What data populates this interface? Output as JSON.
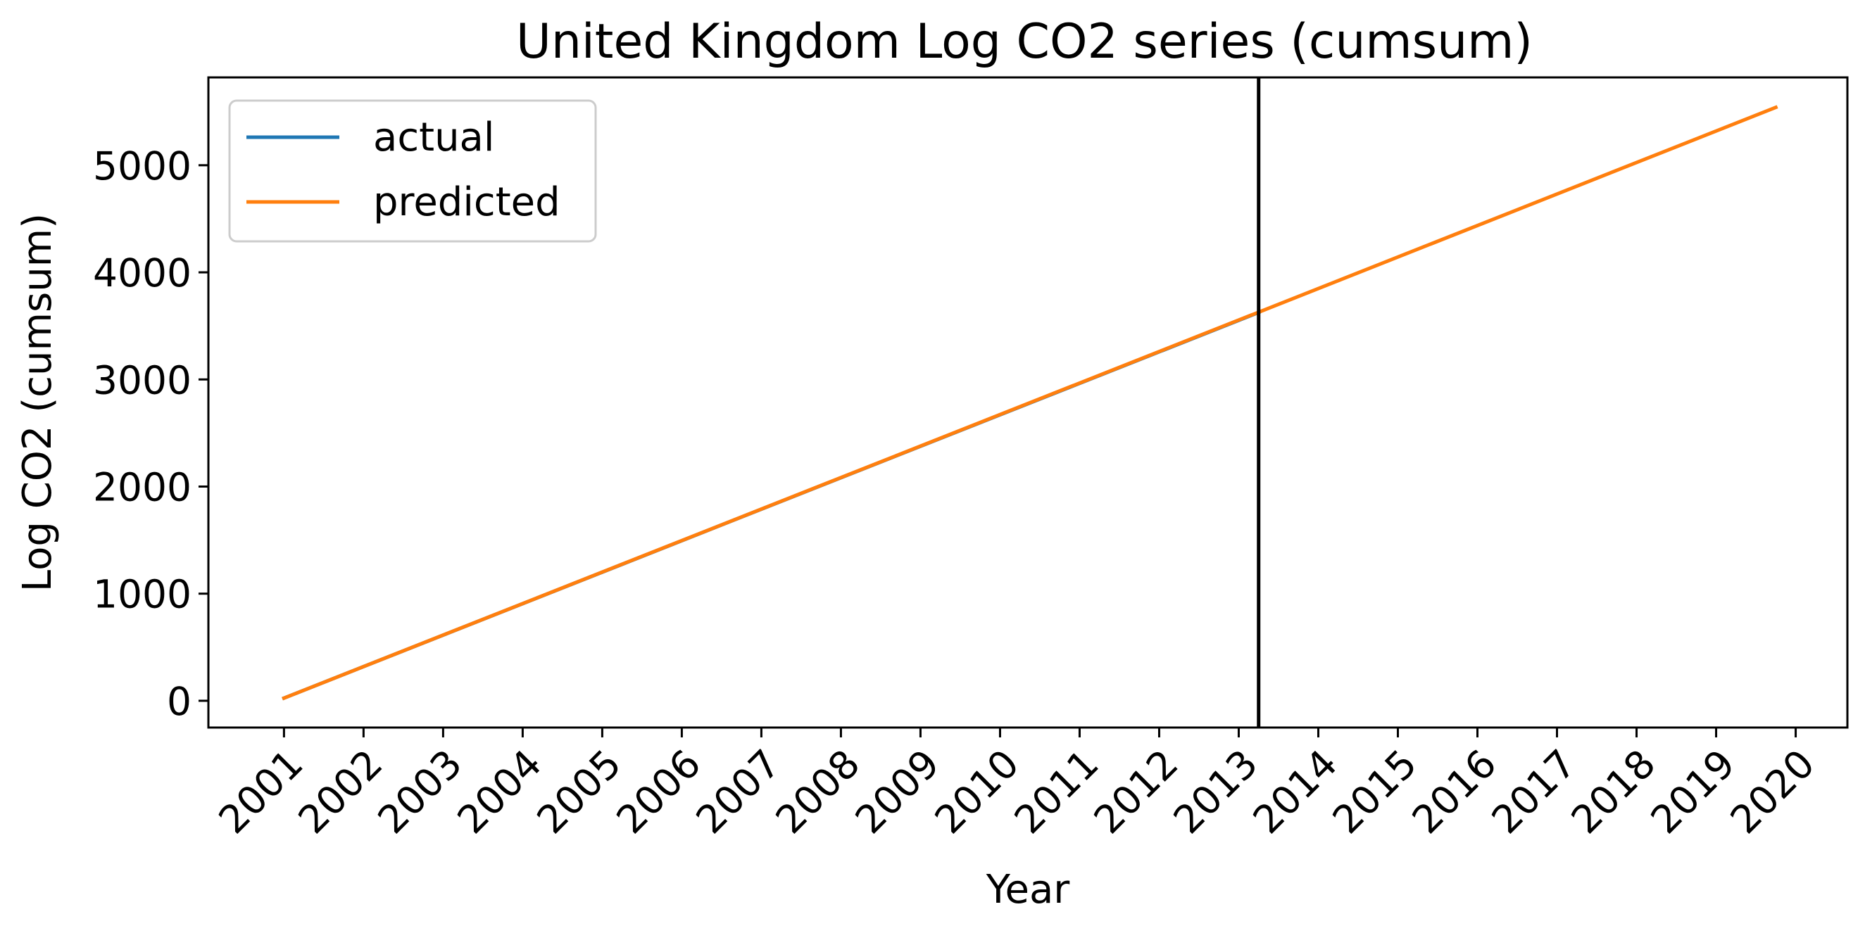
{
  "chart_data": {
    "type": "line",
    "title": "United Kingdom Log CO2 series (cumsum)",
    "xlabel": "Year",
    "ylabel": "Log CO2 (cumsum)",
    "x_ticks": [
      "2001",
      "2002",
      "2003",
      "2004",
      "2005",
      "2006",
      "2007",
      "2008",
      "2009",
      "2010",
      "2011",
      "2012",
      "2013",
      "2014",
      "2015",
      "2016",
      "2017",
      "2018",
      "2019",
      "2020"
    ],
    "y_ticks": [
      0,
      1000,
      2000,
      3000,
      4000,
      5000
    ],
    "xlim": [
      2000.05,
      2020.65
    ],
    "ylim": [
      -250,
      5820
    ],
    "grid": false,
    "legend_position": "top-left",
    "vertical_marker_x": 2013.25,
    "series": [
      {
        "name": "actual",
        "color": "#1f77b4",
        "x": [
          2001.0,
          2013.25
        ],
        "y": [
          25,
          3625
        ]
      },
      {
        "name": "predicted",
        "color": "#ff7f0e",
        "x": [
          2001.0,
          2019.75
        ],
        "y": [
          25,
          5540
        ]
      }
    ]
  }
}
